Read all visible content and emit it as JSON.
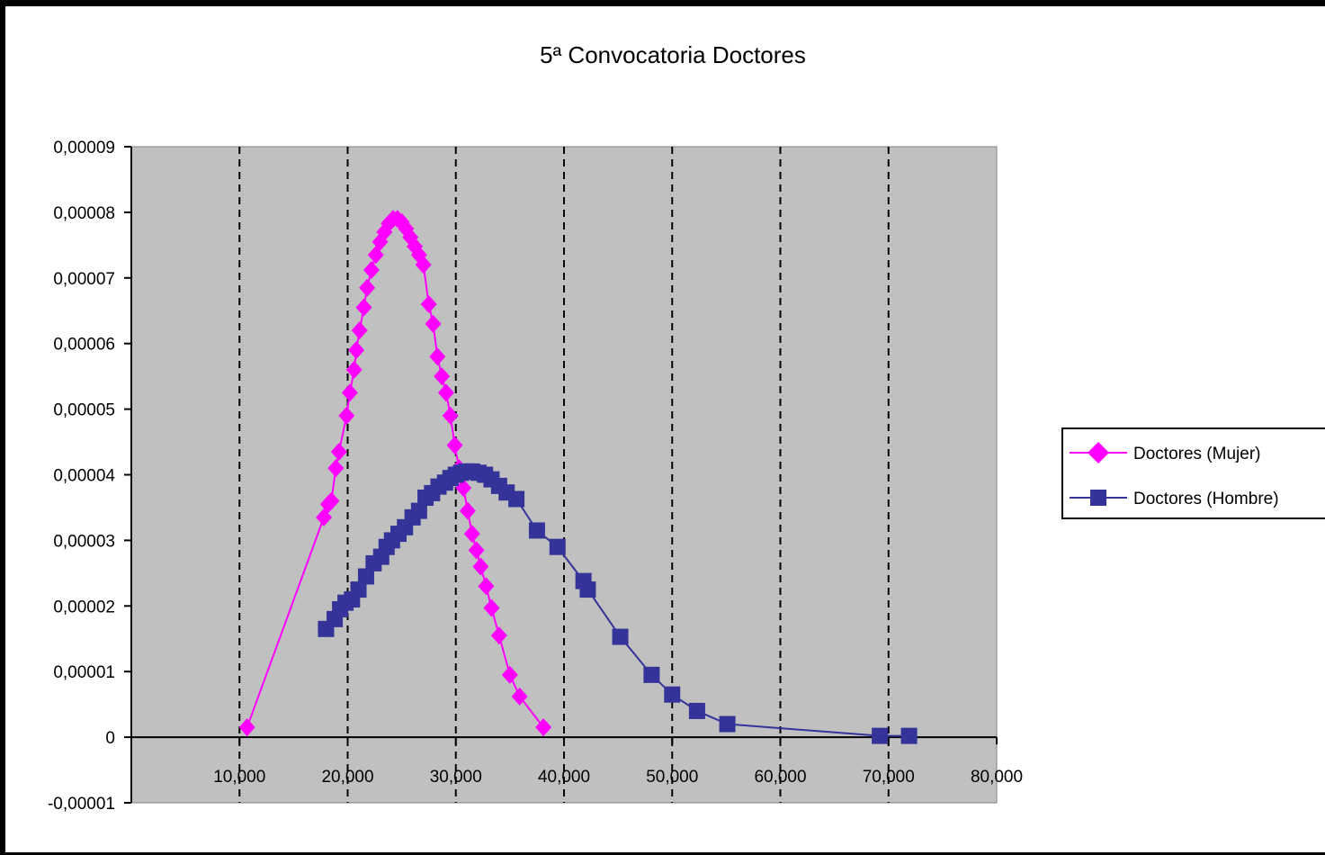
{
  "chart_data": {
    "type": "line",
    "title": "5ª Convocatoria Doctores",
    "xlabel": "",
    "ylabel": "",
    "xlim": [
      0,
      80000
    ],
    "ylim": [
      -1e-05,
      9e-05
    ],
    "x_ticks": [
      10000,
      20000,
      30000,
      40000,
      50000,
      60000,
      70000,
      80000
    ],
    "x_tick_labels": [
      "10,000",
      "20,000",
      "30,000",
      "40,000",
      "50,000",
      "60,000",
      "70,000",
      "80,000"
    ],
    "y_ticks": [
      -1e-05,
      0,
      1e-05,
      2e-05,
      3e-05,
      4e-05,
      5e-05,
      6e-05,
      7e-05,
      8e-05,
      9e-05
    ],
    "y_tick_labels": [
      "-0,00001",
      "0",
      "0,00001",
      "0,00002",
      "0,00003",
      "0,00004",
      "0,00005",
      "0,00006",
      "0,00007",
      "0,00008",
      "0,00009"
    ],
    "grid": "vertical dashed",
    "plot_background": "#c0c0c0",
    "legend_position": "right",
    "series": [
      {
        "name": "Doctores (Mujer)",
        "color": "#ff00ff",
        "marker": "diamond",
        "x": [
          10700,
          17800,
          18200,
          18500,
          18900,
          19200,
          19900,
          20200,
          20600,
          20800,
          21100,
          21500,
          21800,
          22200,
          22600,
          23000,
          23400,
          23800,
          24200,
          24600,
          25000,
          25400,
          25800,
          26200,
          26600,
          27000,
          27500,
          27900,
          28300,
          28700,
          29100,
          29500,
          29900,
          30300,
          30700,
          31100,
          31500,
          31900,
          32300,
          32800,
          33300,
          34000,
          35000,
          35900,
          38100
        ],
        "y": [
          1.5e-06,
          3.35e-05,
          3.55e-05,
          3.6e-05,
          4.1e-05,
          4.35e-05,
          4.9e-05,
          5.25e-05,
          5.6e-05,
          5.9e-05,
          6.2e-05,
          6.55e-05,
          6.85e-05,
          7.12e-05,
          7.35e-05,
          7.55e-05,
          7.7e-05,
          7.83e-05,
          7.9e-05,
          7.9e-05,
          7.85e-05,
          7.75e-05,
          7.62e-05,
          7.48e-05,
          7.35e-05,
          7.2e-05,
          6.6e-05,
          6.3e-05,
          5.8e-05,
          5.5e-05,
          5.25e-05,
          4.9e-05,
          4.45e-05,
          4.1e-05,
          3.8e-05,
          3.45e-05,
          3.1e-05,
          2.85e-05,
          2.6e-05,
          2.3e-05,
          1.97e-05,
          1.55e-05,
          9.5e-06,
          6.2e-06,
          1.5e-06
        ]
      },
      {
        "name": "Doctores (Hombre)",
        "color": "#333399",
        "marker": "square",
        "x": [
          18000,
          18800,
          19300,
          19800,
          20400,
          21000,
          21700,
          22400,
          23100,
          23600,
          24100,
          24700,
          25300,
          26000,
          26600,
          27200,
          27800,
          28400,
          29000,
          29500,
          30000,
          30500,
          31000,
          31500,
          32100,
          32700,
          33300,
          34000,
          34700,
          35600,
          37500,
          39400,
          41800,
          42200,
          45200,
          48100,
          50000,
          52300,
          55100,
          69200,
          71900
        ],
        "y": [
          1.65e-05,
          1.8e-05,
          1.95e-05,
          2.05e-05,
          2.1e-05,
          2.25e-05,
          2.45e-05,
          2.65e-05,
          2.75e-05,
          2.9e-05,
          3e-05,
          3.1e-05,
          3.2e-05,
          3.35e-05,
          3.45e-05,
          3.65e-05,
          3.72e-05,
          3.82e-05,
          3.88e-05,
          3.95e-05,
          4e-05,
          4.03e-05,
          4.05e-05,
          4.05e-05,
          4.03e-05,
          4e-05,
          3.93e-05,
          3.83e-05,
          3.73e-05,
          3.63e-05,
          3.15e-05,
          2.9e-05,
          2.38e-05,
          2.25e-05,
          1.53e-05,
          9.5e-06,
          6.5e-06,
          4e-06,
          2e-06,
          2e-07,
          2e-07
        ]
      }
    ]
  }
}
